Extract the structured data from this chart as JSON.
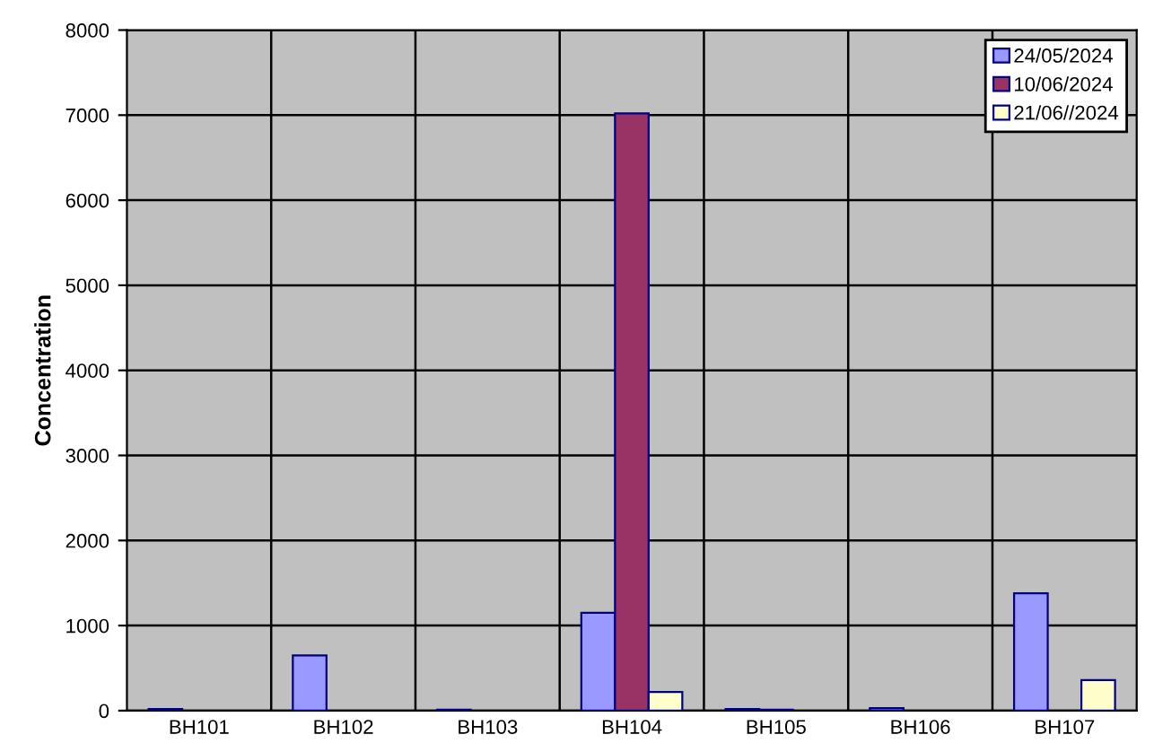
{
  "chart_data": {
    "type": "bar",
    "ylabel": "Concentration",
    "categories": [
      "BH101",
      "BH102",
      "BH103",
      "BH104",
      "BH105",
      "BH106",
      "BH107"
    ],
    "series": [
      {
        "name": "24/05/2024",
        "color": "#9999ff",
        "values": [
          20,
          650,
          10,
          1150,
          20,
          30,
          1380
        ]
      },
      {
        "name": "10/06/2024",
        "color": "#993366",
        "values": [
          null,
          null,
          null,
          7020,
          10,
          null,
          null
        ]
      },
      {
        "name": "21/06//2024",
        "color": "#ffffcc",
        "values": [
          null,
          null,
          null,
          220,
          null,
          null,
          360
        ]
      }
    ],
    "ylim": [
      0,
      8000
    ],
    "yticks": [
      0,
      1000,
      2000,
      3000,
      4000,
      5000,
      6000,
      7000,
      8000
    ],
    "grid": true,
    "legend": "top right"
  }
}
